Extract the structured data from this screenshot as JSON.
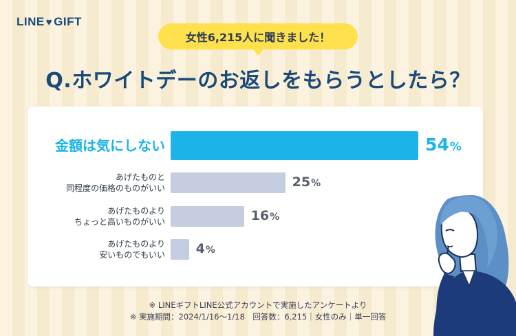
{
  "brand": {
    "logo_left": "LINE",
    "logo_right": "GIFT"
  },
  "header": {
    "pill": "女性6,215人に聞きました！",
    "question": "Q.ホワイトデーのお返しをもらうとしたら？"
  },
  "chart_data": {
    "type": "bar",
    "orientation": "horizontal",
    "categories": [
      [
        "金額は気にしない"
      ],
      [
        "あげたものと",
        "同程度の価格のものがいい"
      ],
      [
        "あげたものより",
        "ちょっと高いものがいい"
      ],
      [
        "あげたものより",
        "安いものでもいい"
      ]
    ],
    "values": [
      54,
      25,
      16,
      4
    ],
    "value_labels": [
      "54",
      "25",
      "16",
      "4"
    ],
    "unit": "%",
    "highlight_index": 0,
    "xlim": [
      0,
      54
    ],
    "colors": {
      "highlight": "#1bb3e8",
      "default": "#c5cde0"
    }
  },
  "footer": {
    "note1": "※ LINEギフトLINE公式アカウントで実施したアンケートより",
    "note2": "※ 実施期間：2024/1/16〜1/18　回答数：6,215｜女性のみ｜単一回答"
  },
  "illustration": {
    "icon": "thinking-woman-illustration"
  }
}
